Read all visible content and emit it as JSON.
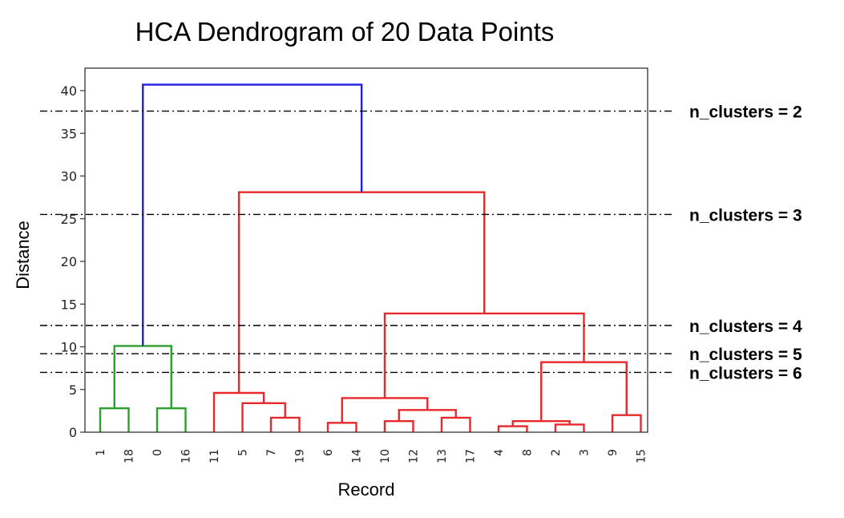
{
  "chart_data": {
    "type": "dendrogram",
    "title": "HCA Dendrogram of 20 Data Points",
    "xlabel": "Record",
    "ylabel": "Distance",
    "ylim": [
      0,
      42
    ],
    "yticks": [
      0,
      5,
      10,
      15,
      20,
      25,
      30,
      35,
      40
    ],
    "leaves": [
      "1",
      "18",
      "0",
      "16",
      "11",
      "5",
      "7",
      "19",
      "6",
      "14",
      "10",
      "12",
      "13",
      "17",
      "4",
      "8",
      "2",
      "3",
      "9",
      "15"
    ],
    "colors": {
      "green": "#2ca02c",
      "red": "#e8282b",
      "blue": "#1f1fe6"
    },
    "links": [
      {
        "left": "1",
        "right": "18",
        "height": 2.8,
        "color": "green"
      },
      {
        "left": "0",
        "right": "16",
        "height": 2.8,
        "color": "green"
      },
      {
        "left": "[1,18]",
        "right": "[0,16]",
        "height": 10.1,
        "color": "green"
      },
      {
        "left": "7",
        "right": "19",
        "height": 1.7,
        "color": "red"
      },
      {
        "left": "5",
        "right": "[7,19]",
        "height": 3.4,
        "color": "red"
      },
      {
        "left": "11",
        "right": "[5,7,19]",
        "height": 4.6,
        "color": "red"
      },
      {
        "left": "6",
        "right": "14",
        "height": 1.1,
        "color": "red"
      },
      {
        "left": "10",
        "right": "12",
        "height": 1.3,
        "color": "red"
      },
      {
        "left": "13",
        "right": "17",
        "height": 1.7,
        "color": "red"
      },
      {
        "left": "[10,12]",
        "right": "[13,17]",
        "height": 2.6,
        "color": "red"
      },
      {
        "left": "[6,14]",
        "right": "[10,12,13,17]",
        "height": 4.0,
        "color": "red"
      },
      {
        "left": "4",
        "right": "8",
        "height": 0.7,
        "color": "red"
      },
      {
        "left": "2",
        "right": "3",
        "height": 0.9,
        "color": "red"
      },
      {
        "left": "[4,8]",
        "right": "[2,3]",
        "height": 1.3,
        "color": "red"
      },
      {
        "left": "9",
        "right": "15",
        "height": 2.0,
        "color": "red"
      },
      {
        "left": "[4,8,2,3]",
        "right": "[9,15]",
        "height": 8.2,
        "color": "red"
      },
      {
        "left": "[6..17]",
        "right": "[4..15]",
        "height": 13.9,
        "color": "red"
      },
      {
        "left": "[11,5,7,19]",
        "right": "[6..15]",
        "height": 28.1,
        "color": "red"
      },
      {
        "left": "[1,18,0,16]",
        "right": "[11..15]",
        "height": 40.7,
        "color": "blue"
      }
    ],
    "cut_lines": [
      {
        "height": 37.6,
        "label": "n_clusters = 2"
      },
      {
        "height": 25.5,
        "label": "n_clusters = 3"
      },
      {
        "height": 12.5,
        "label": "n_clusters = 4"
      },
      {
        "height": 9.2,
        "label": "n_clusters = 5"
      },
      {
        "height": 7.0,
        "label": "n_clusters = 6"
      }
    ]
  }
}
